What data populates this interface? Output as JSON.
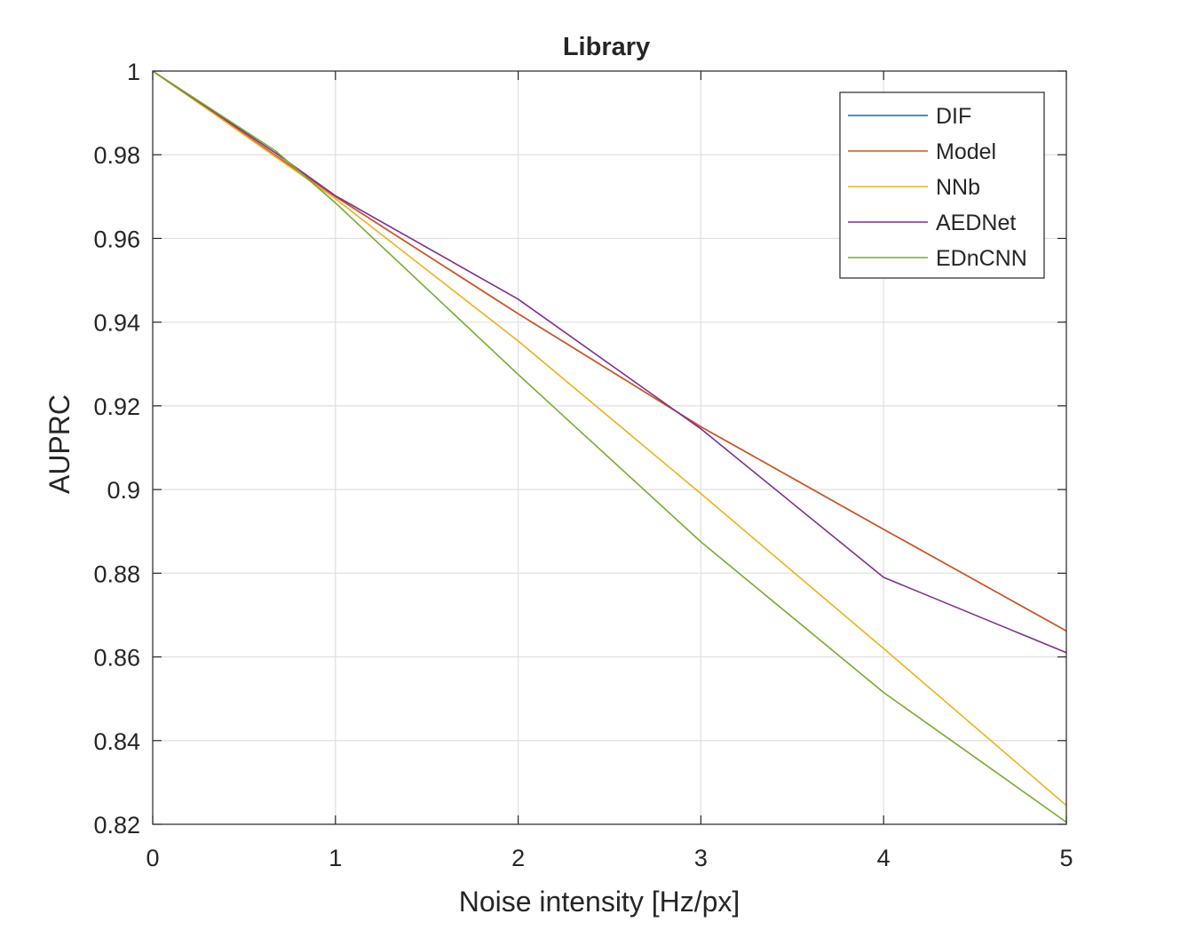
{
  "chart_data": {
    "type": "line",
    "title": "Library",
    "xlabel": "Noise intensity [Hz/px]",
    "ylabel": "AUPRC",
    "xlim": [
      0,
      5
    ],
    "ylim": [
      0.82,
      1
    ],
    "xticks": [
      0,
      1,
      2,
      3,
      4,
      5
    ],
    "xtick_labels": [
      "0",
      "1",
      "2",
      "3",
      "4",
      "5"
    ],
    "yticks": [
      0.82,
      0.84,
      0.86,
      0.88,
      0.9,
      0.92,
      0.94,
      0.96,
      0.98,
      1
    ],
    "ytick_labels": [
      "0.82",
      "0.84",
      "0.86",
      "0.88",
      "0.9",
      "0.92",
      "0.94",
      "0.96",
      "0.98",
      "1"
    ],
    "grid": true,
    "legend_position": "top-right",
    "series": [
      {
        "name": "DIF",
        "color": "#0072BD",
        "x": [
          0,
          1,
          2,
          3,
          4,
          5
        ],
        "y": [
          1,
          0.97,
          0.942,
          0.915,
          0.8905,
          0.8662
        ]
      },
      {
        "name": "Model",
        "color": "#D95319",
        "x": [
          0,
          1,
          2,
          3,
          4,
          5
        ],
        "y": [
          1,
          0.97,
          0.942,
          0.915,
          0.8905,
          0.8662
        ]
      },
      {
        "name": "NNb",
        "color": "#EDB120",
        "x": [
          0,
          1,
          2,
          3,
          4,
          5
        ],
        "y": [
          1,
          0.9695,
          0.9355,
          0.899,
          0.862,
          0.8245
        ]
      },
      {
        "name": "AEDNet",
        "color": "#7E2F8E",
        "x": [
          0,
          0.67,
          1,
          2,
          3,
          4,
          5
        ],
        "y": [
          1,
          0.9805,
          0.9702,
          0.9455,
          0.9145,
          0.879,
          0.861
        ]
      },
      {
        "name": "EDnCNN",
        "color": "#77AC30",
        "x": [
          0,
          0.67,
          1,
          2,
          3,
          4,
          5
        ],
        "y": [
          1,
          0.981,
          0.9685,
          0.9275,
          0.8875,
          0.8515,
          0.8205
        ]
      }
    ]
  }
}
